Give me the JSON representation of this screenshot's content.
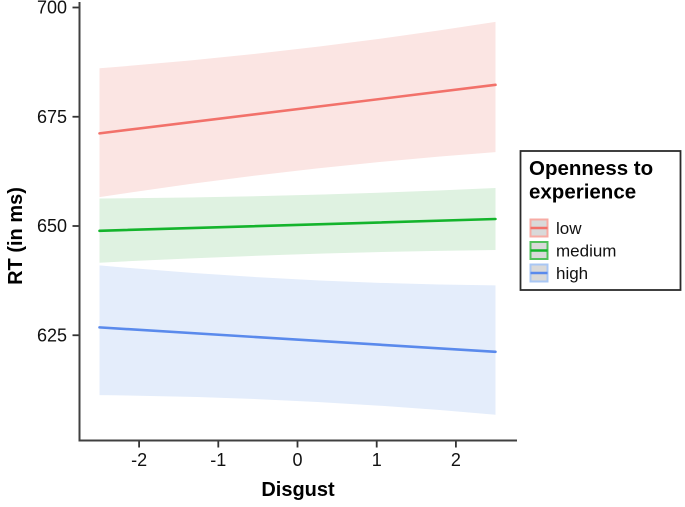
{
  "chart_data": {
    "type": "line",
    "title": "",
    "xlabel": "Disgust",
    "ylabel": "RT (in ms)",
    "x_domain": [
      -2.5,
      2.5
    ],
    "x_ticks": [
      -2,
      -1,
      0,
      1,
      2
    ],
    "y_ticks": [
      625,
      650,
      675,
      700
    ],
    "ylim": [
      605,
      700
    ],
    "grid": false,
    "legend": {
      "position": "right",
      "title_line1": "Openness to",
      "title_line2": "experience"
    },
    "series": [
      {
        "name": "low",
        "x": [
          -2.5,
          2.5
        ],
        "y": [
          671.2,
          682.3
        ],
        "ci_upper": [
          686.1,
          696.7
        ],
        "ci_lower": [
          656.6,
          666.9
        ],
        "line_color": "#F2716A",
        "ribbon_color": "#FBE5E3",
        "key_border": "#F7ABA4"
      },
      {
        "name": "medium",
        "x": [
          -2.5,
          2.5
        ],
        "y": [
          648.9,
          651.6
        ],
        "ci_upper": [
          656.3,
          658.7
        ],
        "ci_lower": [
          641.6,
          644.5
        ],
        "line_color": "#14B42C",
        "ribbon_color": "#DFF2E1",
        "key_border": "#52C15C"
      },
      {
        "name": "high",
        "x": [
          -2.5,
          2.5
        ],
        "y": [
          626.8,
          621.2
        ],
        "ci_upper": [
          641.0,
          636.4
        ],
        "ci_lower": [
          611.3,
          606.8
        ],
        "line_color": "#5A8AEC",
        "ribbon_color": "#E4EDFB",
        "key_border": "#A9C7F4"
      }
    ],
    "colors": {
      "axis_line": "#404040",
      "tick_mark": "#333333",
      "legend_border": "#2B2B2B",
      "legend_key_fill": "#D9D9D9",
      "background": "#FFFFFF"
    }
  }
}
